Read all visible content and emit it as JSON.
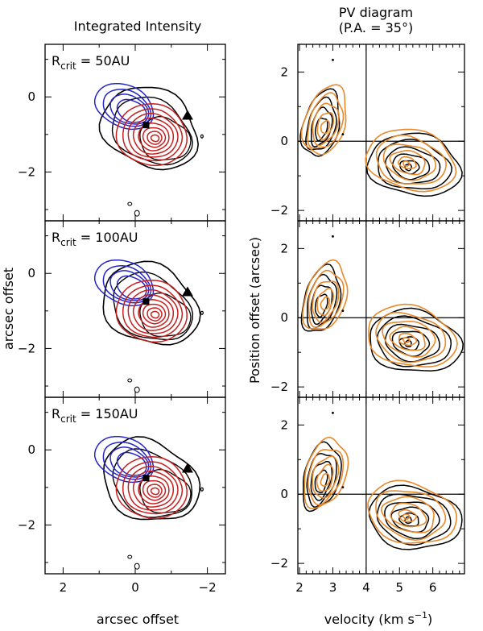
{
  "chart_data": {
    "type": "contour",
    "colors": {
      "black": "#000000",
      "blue": "#2626c8",
      "red": "#c81e1e",
      "orange": "#e8892a"
    },
    "left": {
      "title": "Integrated Intensity",
      "xlabel": "arcsec offset",
      "ylabel": "arcsec offset",
      "xlim": [
        2.5,
        -2.5
      ],
      "ylim": [
        -3.3,
        1.4
      ],
      "xticks": [
        "2",
        "0",
        "−2"
      ],
      "yticks": [
        "0",
        "−2"
      ],
      "rows": [
        {
          "r_prefix": "R",
          "r_sub": "crit",
          "r_value": "= 50AU"
        },
        {
          "r_prefix": "R",
          "r_sub": "crit",
          "r_value": "= 100AU"
        },
        {
          "r_prefix": "R",
          "r_sub": "crit",
          "r_value": "= 150AU"
        }
      ],
      "black_center": [
        -0.5,
        -1.0
      ],
      "blue_center": [
        0.3,
        -0.25
      ],
      "red_center": [
        -0.55,
        -1.1
      ],
      "square_marker": [
        -0.3,
        -0.75
      ],
      "triangle_marker": [
        -1.45,
        -0.5
      ]
    },
    "right": {
      "title_line1": "PV diagram",
      "title_line2": "(P.A. = 35°)",
      "xlabel": "velocity (km s",
      "xlabel_sup": "−1",
      "xlabel_end": ")",
      "ylabel": "Position offset (arcsec)",
      "xlim": [
        1.95,
        6.95
      ],
      "ylim": [
        -2.3,
        2.8
      ],
      "xticks": [
        "2",
        "3",
        "4",
        "5",
        "6"
      ],
      "yticks": [
        "2",
        "0",
        "−2"
      ],
      "vsys": 4.0,
      "blue_lobe_center": [
        2.7,
        0.55
      ],
      "red_lobe_center": [
        5.3,
        -0.6
      ]
    }
  }
}
